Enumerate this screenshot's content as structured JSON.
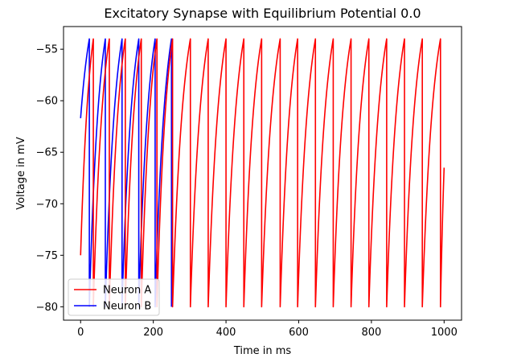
{
  "chart_data": {
    "type": "line",
    "title": "Excitatory Synapse with Equilibrium Potential 0.0",
    "xlabel": "Time in ms",
    "ylabel": "Voltage in mV",
    "xlim": [
      -47,
      1048
    ],
    "ylim": [
      -81.3,
      -52.8
    ],
    "xticks": [
      0,
      200,
      400,
      600,
      800,
      1000
    ],
    "yticks": [
      -80,
      -75,
      -70,
      -65,
      -60,
      -55
    ],
    "ytick_labels": [
      "−80",
      "−75",
      "−70",
      "−65",
      "−60",
      "−55"
    ],
    "v_reset": -80,
    "v_threshold": -54,
    "legend": {
      "position": "lower-left"
    },
    "series": [
      {
        "name": "Neuron A",
        "color": "#ff0000",
        "v_start": -75,
        "x_end": 1000,
        "v_end": -66.5,
        "spike_times": [
          35,
          79,
          123,
          167,
          210,
          253,
          302,
          351,
          400,
          449,
          498,
          549,
          597,
          646,
          695,
          744,
          793,
          842,
          891,
          940,
          990
        ]
      },
      {
        "name": "Neuron B",
        "color": "#0000ff",
        "v_start": -61.7,
        "spike_times": [
          24,
          68,
          114,
          160,
          205,
          250
        ]
      }
    ]
  }
}
